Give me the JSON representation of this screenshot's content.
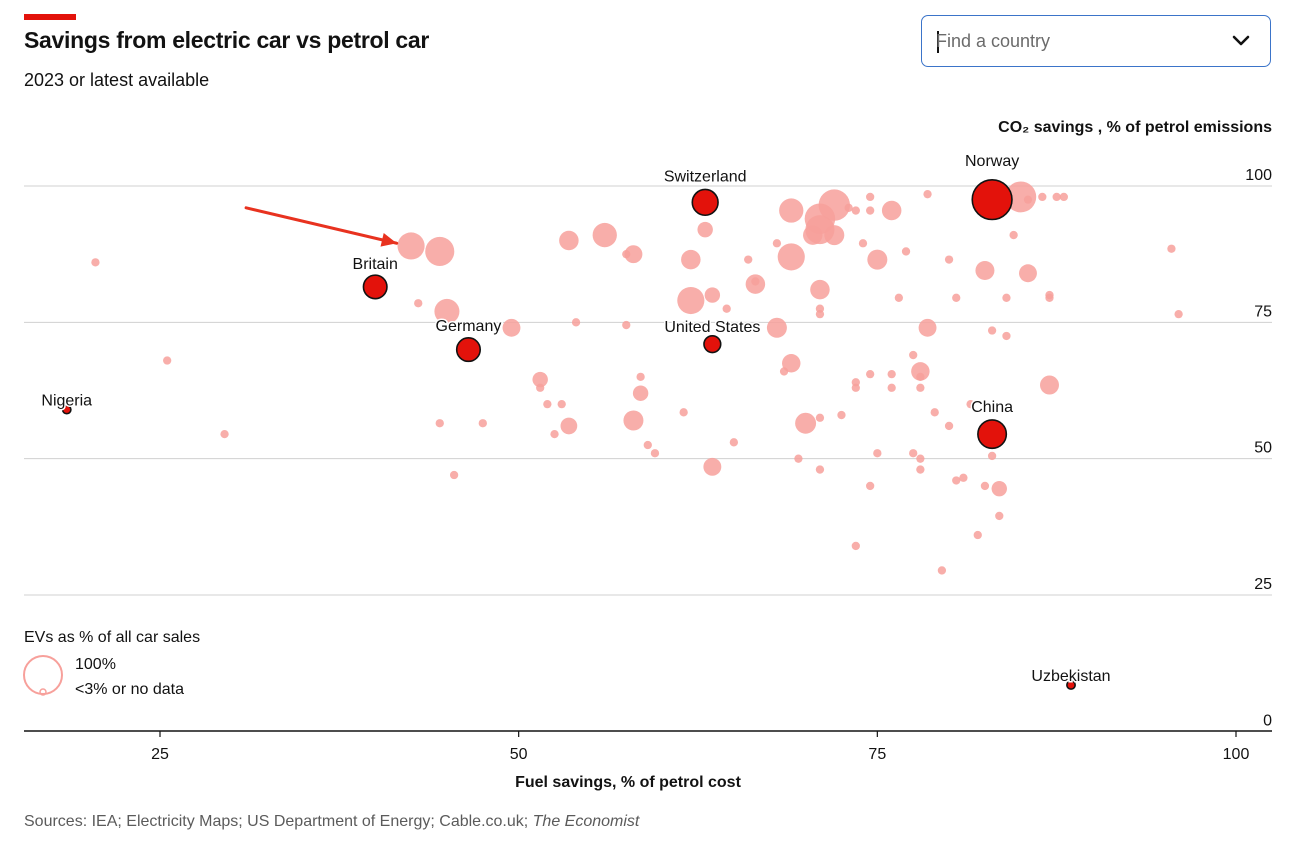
{
  "header": {
    "title": "Savings from electric car vs petrol car",
    "subtitle": "2023 or latest available"
  },
  "search": {
    "placeholder": "Find a country"
  },
  "footer": {
    "sources": "Sources: IEA; Electricity Maps; US Department of Energy; Cable.co.uk; ",
    "publication": "The Economist"
  },
  "legend": {
    "title": "EVs as % of all car sales",
    "max_label": "100%",
    "min_label": "<3% or no data"
  },
  "colors": {
    "accent": "#e3120b",
    "highlight_fill": "#e3120b",
    "bubble_fill": "#f7a09b",
    "arrow": "#e8321f"
  },
  "chart_data": {
    "type": "scatter",
    "xlabel": "Fuel savings, % of petrol cost",
    "ylabel": "CO₂ savings , % of petrol emissions",
    "xlim": [
      15.5,
      102.5
    ],
    "ylim": [
      -2.5,
      100
    ],
    "x_ticks": [
      25,
      50,
      75,
      100
    ],
    "y_ticks": [
      0,
      25,
      50,
      75,
      100
    ],
    "grid": true,
    "size_variable": "EVs as % of all car sales",
    "labelled_points": [
      {
        "label": "Norway",
        "x": 83,
        "y": 97.5,
        "ev_share": 82
      },
      {
        "label": "Switzerland",
        "x": 63,
        "y": 97,
        "ev_share": 30
      },
      {
        "label": "Britain",
        "x": 40,
        "y": 81.5,
        "ev_share": 24
      },
      {
        "label": "Germany",
        "x": 46.5,
        "y": 70,
        "ev_share": 24
      },
      {
        "label": "United States",
        "x": 63.5,
        "y": 71,
        "ev_share": 10
      },
      {
        "label": "China",
        "x": 83,
        "y": 54.5,
        "ev_share": 38
      },
      {
        "label": "Nigeria",
        "x": 18.5,
        "y": 59,
        "ev_share": 1
      },
      {
        "label": "Uzbekistan",
        "x": 88.5,
        "y": 8.5,
        "ev_share": 1
      }
    ],
    "other_points": [
      {
        "x": 20.5,
        "y": 86,
        "s": 1
      },
      {
        "x": 25.5,
        "y": 68,
        "s": 1
      },
      {
        "x": 29.5,
        "y": 54.5,
        "s": 1
      },
      {
        "x": 42.5,
        "y": 89,
        "s": 34
      },
      {
        "x": 44.5,
        "y": 88,
        "s": 40
      },
      {
        "x": 45,
        "y": 77,
        "s": 28
      },
      {
        "x": 43,
        "y": 78.5,
        "s": 1
      },
      {
        "x": 44.5,
        "y": 56.5,
        "s": 1
      },
      {
        "x": 45.5,
        "y": 47,
        "s": 1
      },
      {
        "x": 47.5,
        "y": 56.5,
        "s": 1
      },
      {
        "x": 49.5,
        "y": 74,
        "s": 12
      },
      {
        "x": 51.5,
        "y": 64.5,
        "s": 8
      },
      {
        "x": 51.5,
        "y": 63,
        "s": 1
      },
      {
        "x": 52,
        "y": 60,
        "s": 1
      },
      {
        "x": 52.5,
        "y": 54.5,
        "s": 1
      },
      {
        "x": 53,
        "y": 60,
        "s": 1
      },
      {
        "x": 53.5,
        "y": 56,
        "s": 10
      },
      {
        "x": 53.5,
        "y": 90,
        "s": 15
      },
      {
        "x": 54,
        "y": 75,
        "s": 1
      },
      {
        "x": 56,
        "y": 91,
        "s": 26
      },
      {
        "x": 57.5,
        "y": 87.5,
        "s": 1
      },
      {
        "x": 57.5,
        "y": 74.5,
        "s": 1
      },
      {
        "x": 58,
        "y": 87.5,
        "s": 12
      },
      {
        "x": 58,
        "y": 57,
        "s": 16
      },
      {
        "x": 58.5,
        "y": 62,
        "s": 8
      },
      {
        "x": 58.5,
        "y": 65,
        "s": 1
      },
      {
        "x": 59,
        "y": 52.5,
        "s": 1
      },
      {
        "x": 59.5,
        "y": 51,
        "s": 1
      },
      {
        "x": 61.5,
        "y": 58.5,
        "s": 1
      },
      {
        "x": 62,
        "y": 86.5,
        "s": 15
      },
      {
        "x": 62,
        "y": 79,
        "s": 34
      },
      {
        "x": 63,
        "y": 92,
        "s": 8
      },
      {
        "x": 63.5,
        "y": 80,
        "s": 8
      },
      {
        "x": 63.5,
        "y": 48.5,
        "s": 12
      },
      {
        "x": 64.5,
        "y": 77.5,
        "s": 1
      },
      {
        "x": 65,
        "y": 53,
        "s": 1
      },
      {
        "x": 66,
        "y": 86.5,
        "s": 1
      },
      {
        "x": 66.5,
        "y": 82,
        "s": 15
      },
      {
        "x": 66.5,
        "y": 82.5,
        "s": 1
      },
      {
        "x": 68,
        "y": 74,
        "s": 16
      },
      {
        "x": 68,
        "y": 89.5,
        "s": 1
      },
      {
        "x": 68.5,
        "y": 66,
        "s": 1
      },
      {
        "x": 69,
        "y": 95.5,
        "s": 26
      },
      {
        "x": 69,
        "y": 87,
        "s": 34
      },
      {
        "x": 69,
        "y": 67.5,
        "s": 13
      },
      {
        "x": 69.5,
        "y": 50,
        "s": 1
      },
      {
        "x": 70,
        "y": 56.5,
        "s": 18
      },
      {
        "x": 70.5,
        "y": 91,
        "s": 15
      },
      {
        "x": 71,
        "y": 92,
        "s": 40
      },
      {
        "x": 71,
        "y": 94,
        "s": 45
      },
      {
        "x": 71,
        "y": 81,
        "s": 15
      },
      {
        "x": 71,
        "y": 77.5,
        "s": 1
      },
      {
        "x": 71,
        "y": 76.5,
        "s": 1
      },
      {
        "x": 71,
        "y": 57.5,
        "s": 1
      },
      {
        "x": 71,
        "y": 48,
        "s": 1
      },
      {
        "x": 72,
        "y": 96.5,
        "s": 48
      },
      {
        "x": 72,
        "y": 91,
        "s": 16
      },
      {
        "x": 72.5,
        "y": 58,
        "s": 1
      },
      {
        "x": 73,
        "y": 96,
        "s": 1
      },
      {
        "x": 73.5,
        "y": 95.5,
        "s": 1
      },
      {
        "x": 73.5,
        "y": 64,
        "s": 1
      },
      {
        "x": 73.5,
        "y": 63,
        "s": 1
      },
      {
        "x": 73.5,
        "y": 34,
        "s": 1
      },
      {
        "x": 74,
        "y": 89.5,
        "s": 1
      },
      {
        "x": 74.5,
        "y": 95.5,
        "s": 1
      },
      {
        "x": 74.5,
        "y": 98,
        "s": 1
      },
      {
        "x": 74.5,
        "y": 65.5,
        "s": 1
      },
      {
        "x": 74.5,
        "y": 45,
        "s": 1
      },
      {
        "x": 75,
        "y": 86.5,
        "s": 16
      },
      {
        "x": 75,
        "y": 51,
        "s": 1
      },
      {
        "x": 76,
        "y": 95.5,
        "s": 15
      },
      {
        "x": 76,
        "y": 65.5,
        "s": 1
      },
      {
        "x": 76,
        "y": 63,
        "s": 1
      },
      {
        "x": 76.5,
        "y": 79.5,
        "s": 1
      },
      {
        "x": 77,
        "y": 88,
        "s": 1
      },
      {
        "x": 77.5,
        "y": 69,
        "s": 1
      },
      {
        "x": 77.5,
        "y": 51,
        "s": 1
      },
      {
        "x": 78,
        "y": 66,
        "s": 13
      },
      {
        "x": 78,
        "y": 65,
        "s": 1
      },
      {
        "x": 78,
        "y": 63,
        "s": 1
      },
      {
        "x": 78,
        "y": 50,
        "s": 1
      },
      {
        "x": 78,
        "y": 48,
        "s": 1
      },
      {
        "x": 78.5,
        "y": 98.5,
        "s": 1
      },
      {
        "x": 78.5,
        "y": 74,
        "s": 12
      },
      {
        "x": 79,
        "y": 58.5,
        "s": 1
      },
      {
        "x": 79.5,
        "y": 29.5,
        "s": 1
      },
      {
        "x": 80,
        "y": 56,
        "s": 1
      },
      {
        "x": 80,
        "y": 86.5,
        "s": 1
      },
      {
        "x": 80.5,
        "y": 79.5,
        "s": 1
      },
      {
        "x": 80.5,
        "y": 46,
        "s": 1
      },
      {
        "x": 81,
        "y": 46.5,
        "s": 1
      },
      {
        "x": 81.5,
        "y": 60,
        "s": 1
      },
      {
        "x": 82,
        "y": 36,
        "s": 1
      },
      {
        "x": 82.5,
        "y": 45,
        "s": 1
      },
      {
        "x": 82.5,
        "y": 84.5,
        "s": 14
      },
      {
        "x": 83,
        "y": 73.5,
        "s": 1
      },
      {
        "x": 83,
        "y": 50.5,
        "s": 1
      },
      {
        "x": 83.5,
        "y": 44.5,
        "s": 8
      },
      {
        "x": 83.5,
        "y": 39.5,
        "s": 1
      },
      {
        "x": 84,
        "y": 79.5,
        "s": 1
      },
      {
        "x": 84,
        "y": 72.5,
        "s": 1
      },
      {
        "x": 84.5,
        "y": 91,
        "s": 1
      },
      {
        "x": 85.5,
        "y": 84,
        "s": 12
      },
      {
        "x": 85.5,
        "y": 97.5,
        "s": 1
      },
      {
        "x": 85,
        "y": 98,
        "s": 46
      },
      {
        "x": 86.5,
        "y": 98,
        "s": 1
      },
      {
        "x": 87,
        "y": 79.5,
        "s": 1
      },
      {
        "x": 87,
        "y": 80,
        "s": 1
      },
      {
        "x": 87,
        "y": 63.5,
        "s": 14
      },
      {
        "x": 87.5,
        "y": 98,
        "s": 1
      },
      {
        "x": 88,
        "y": 98,
        "s": 1
      },
      {
        "x": 95.5,
        "y": 88.5,
        "s": 1
      },
      {
        "x": 96,
        "y": 76.5,
        "s": 1
      }
    ],
    "annotation": {
      "type": "arrow",
      "from": [
        31,
        96
      ],
      "to": [
        41.5,
        89.5
      ]
    }
  }
}
